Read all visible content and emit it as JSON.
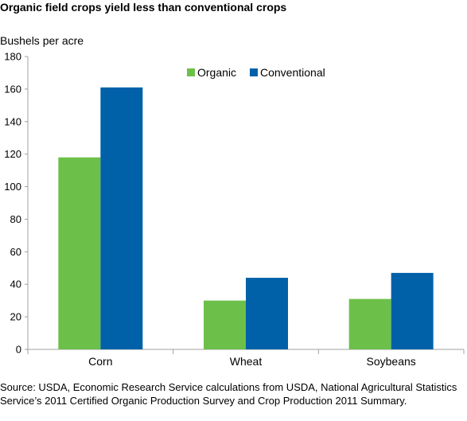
{
  "header": {
    "title": "Organic field crops yield less than conventional crops",
    "y_axis_label": "Bushels per acre"
  },
  "footer": {
    "source": "Source: USDA, Economic Research Service calculations from USDA, National Agricultural Statistics Service’s 2011 Certified Organic Production Survey and Crop Production 2011 Summary."
  },
  "chart_data": {
    "type": "bar",
    "title": "Organic field crops yield less than conventional crops",
    "ylabel": "Bushels per acre",
    "xlabel": "",
    "categories": [
      "Corn",
      "Wheat",
      "Soybeans"
    ],
    "series": [
      {
        "name": "Organic",
        "values": [
          118,
          30,
          31
        ],
        "color": "#6cc04a"
      },
      {
        "name": "Conventional",
        "values": [
          161,
          44,
          47
        ],
        "color": "#0061a8"
      }
    ],
    "ylim": [
      0,
      180
    ],
    "yticks": [
      0,
      20,
      40,
      60,
      80,
      100,
      120,
      140,
      160,
      180
    ],
    "grid": false,
    "legend_position": "top-right",
    "axis_color": "#a0a0a0"
  }
}
